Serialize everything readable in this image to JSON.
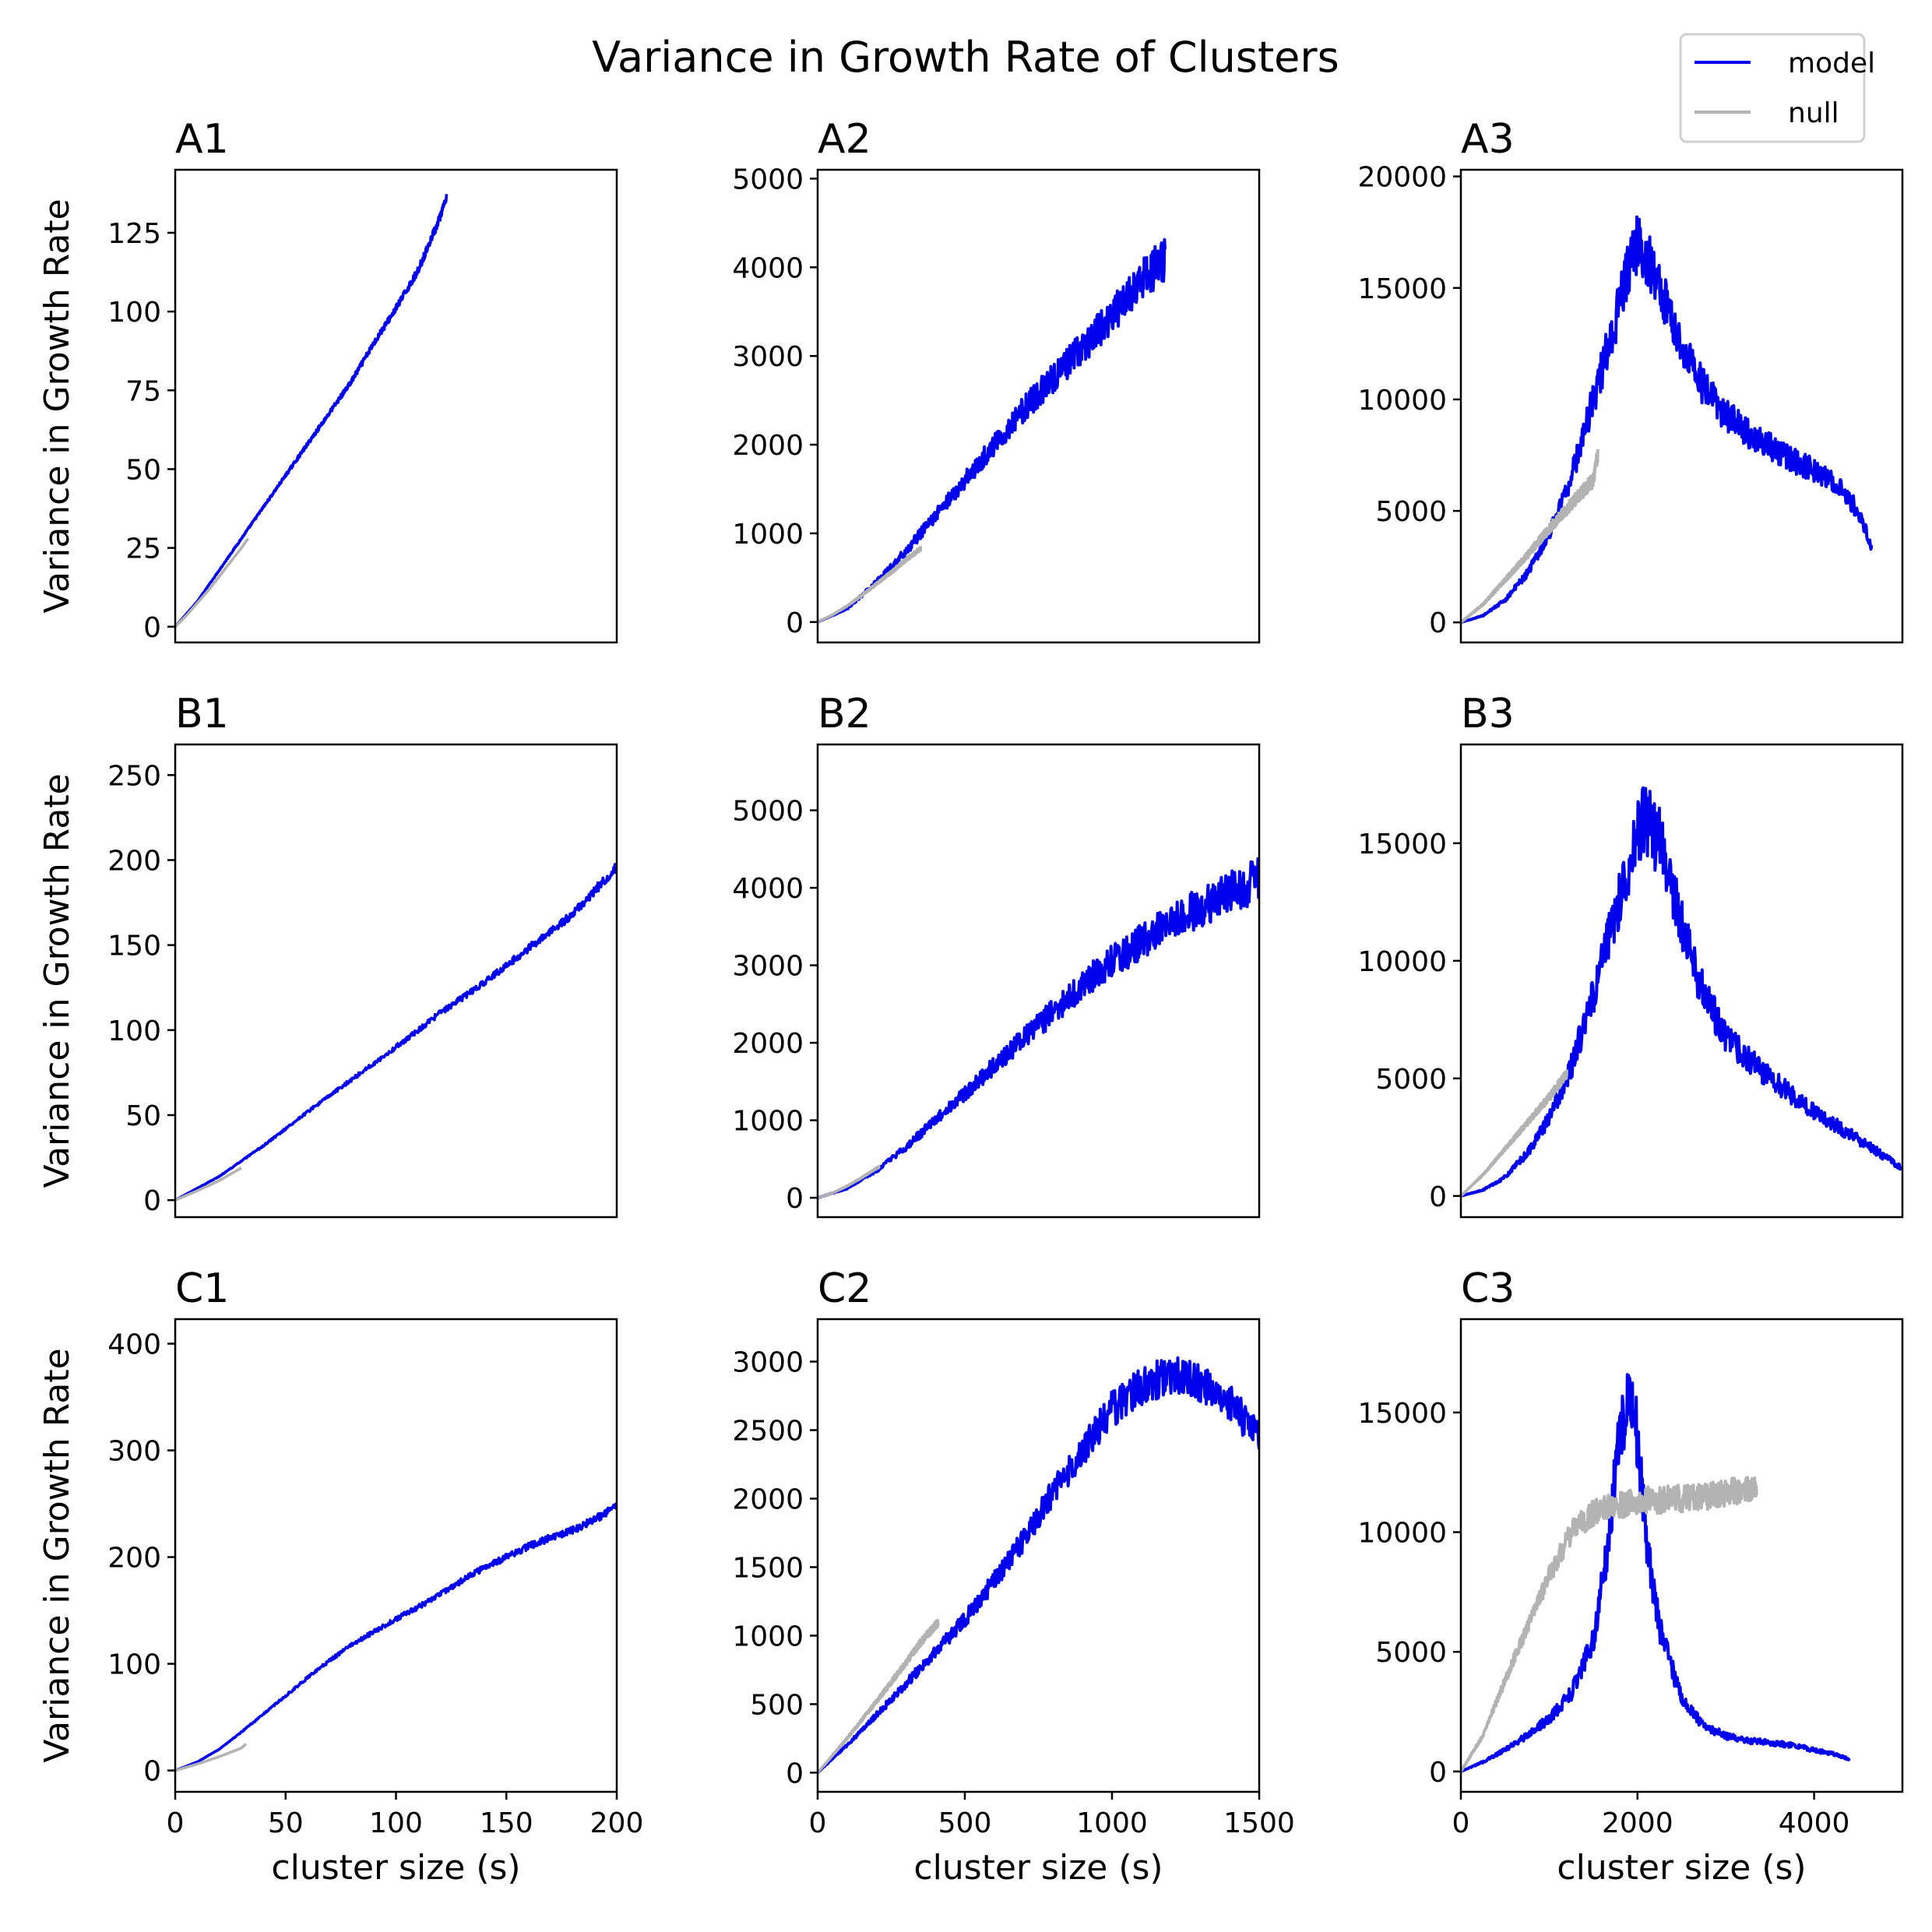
{
  "figure": {
    "title": "Variance in Growth Rate of Clusters",
    "legend": {
      "placement": "top-right",
      "entries": [
        {
          "label": "model",
          "color": "#0000ee"
        },
        {
          "label": "null",
          "color": "#b3b3b3"
        }
      ]
    }
  },
  "chart_data": [
    {
      "id": "A1",
      "type": "line",
      "title": "A1",
      "xlabel": "",
      "ylabel": "Variance in Growth Rate",
      "xlim": [
        0,
        200
      ],
      "ylim": [
        -5,
        145
      ],
      "xticks": [],
      "xticklabels": [],
      "yticks": [
        0,
        25,
        50,
        75,
        100,
        125
      ],
      "series": [
        {
          "name": "model",
          "color": "#0000ee",
          "noise": 0.01,
          "x": [
            0,
            10,
            20,
            30,
            40,
            50,
            60,
            70,
            80,
            90,
            100,
            110,
            120,
            123
          ],
          "y": [
            0,
            8,
            18,
            28,
            38,
            48,
            58,
            68,
            78,
            90,
            101,
            113,
            130,
            136
          ]
        },
        {
          "name": "null",
          "color": "#b3b3b3",
          "noise": 0.0,
          "x": [
            0,
            5,
            10,
            15,
            20,
            25,
            30,
            33
          ],
          "y": [
            0,
            3.5,
            7.5,
            11.5,
            16,
            20.5,
            25,
            28
          ]
        }
      ]
    },
    {
      "id": "A2",
      "type": "line",
      "title": "A2",
      "xlabel": "",
      "ylabel": "",
      "xlim": [
        0,
        1500
      ],
      "ylim": [
        -230,
        5100
      ],
      "xticks": [],
      "xticklabels": [],
      "yticks": [
        0,
        1000,
        2000,
        3000,
        4000,
        5000
      ],
      "series": [
        {
          "name": "model",
          "color": "#0000ee",
          "noise": 0.06,
          "x": [
            0,
            100,
            200,
            300,
            400,
            500,
            600,
            700,
            800,
            900,
            1000,
            1100,
            1180
          ],
          "y": [
            0,
            150,
            450,
            800,
            1200,
            1600,
            2000,
            2400,
            2750,
            3100,
            3450,
            3850,
            4100
          ]
        },
        {
          "name": "null",
          "color": "#b3b3b3",
          "noise": 0.03,
          "x": [
            0,
            50,
            100,
            150,
            200,
            250,
            300,
            350
          ],
          "y": [
            0,
            80,
            180,
            300,
            430,
            560,
            700,
            830
          ]
        }
      ]
    },
    {
      "id": "A3",
      "type": "line",
      "title": "A3",
      "xlabel": "",
      "ylabel": "",
      "xlim": [
        0,
        5000
      ],
      "ylim": [
        -900,
        20300
      ],
      "xticks": [],
      "xticklabels": [],
      "yticks": [
        0,
        5000,
        10000,
        15000,
        20000
      ],
      "series": [
        {
          "name": "model",
          "color": "#0000ee",
          "noise": 0.08,
          "x": [
            0,
            250,
            500,
            750,
            1000,
            1250,
            1500,
            1750,
            1900,
            2000,
            2100,
            2250,
            2500,
            2750,
            3000,
            3250,
            3500,
            3750,
            4000,
            4250,
            4500,
            4650
          ],
          "y": [
            0,
            300,
            1000,
            2200,
            4000,
            6500,
            10000,
            13500,
            16000,
            17000,
            16500,
            15000,
            12500,
            10500,
            9300,
            8500,
            7900,
            7300,
            6800,
            6200,
            5000,
            3500
          ]
        },
        {
          "name": "null",
          "color": "#b3b3b3",
          "noise": 0.05,
          "x": [
            0,
            250,
            500,
            750,
            1000,
            1250,
            1500,
            1550
          ],
          "y": [
            0,
            800,
            1900,
            3000,
            4200,
            5300,
            6400,
            7600
          ]
        }
      ]
    },
    {
      "id": "B1",
      "type": "line",
      "title": "B1",
      "xlabel": "",
      "ylabel": "Variance in Growth Rate",
      "xlim": [
        0,
        200
      ],
      "ylim": [
        -10,
        268
      ],
      "xticks": [],
      "xticklabels": [],
      "yticks": [
        0,
        50,
        100,
        150,
        200,
        250
      ],
      "series": [
        {
          "name": "model",
          "color": "#0000ee",
          "noise": 0.015,
          "x": [
            0,
            20,
            40,
            60,
            80,
            100,
            120,
            140,
            160,
            180,
            200
          ],
          "y": [
            0,
            14,
            32,
            52,
            71,
            90,
            110,
            128,
            148,
            168,
            196
          ]
        },
        {
          "name": "null",
          "color": "#b3b3b3",
          "noise": 0.0,
          "x": [
            0,
            10,
            20,
            30
          ],
          "y": [
            0,
            5.5,
            11.5,
            19
          ]
        }
      ]
    },
    {
      "id": "B2",
      "type": "line",
      "title": "B2",
      "xlabel": "",
      "ylabel": "",
      "xlim": [
        0,
        1500
      ],
      "ylim": [
        -250,
        5850
      ],
      "xticks": [],
      "xticklabels": [],
      "yticks": [
        0,
        1000,
        2000,
        3000,
        4000,
        5000
      ],
      "series": [
        {
          "name": "model",
          "color": "#0000ee",
          "noise": 0.07,
          "x": [
            0,
            100,
            200,
            300,
            400,
            500,
            600,
            700,
            800,
            900,
            1000,
            1100,
            1200,
            1300,
            1400,
            1500
          ],
          "y": [
            0,
            120,
            350,
            650,
            1000,
            1350,
            1700,
            2050,
            2400,
            2750,
            3050,
            3300,
            3550,
            3750,
            3950,
            4100
          ]
        },
        {
          "name": "null",
          "color": "#b3b3b3",
          "noise": 0.02,
          "x": [
            0,
            50,
            100,
            150,
            200,
            210
          ],
          "y": [
            0,
            60,
            150,
            260,
            380,
            400
          ]
        }
      ]
    },
    {
      "id": "B3",
      "type": "line",
      "title": "B3",
      "xlabel": "",
      "ylabel": "",
      "xlim": [
        0,
        5000
      ],
      "ylim": [
        -900,
        19200
      ],
      "xticks": [],
      "xticklabels": [],
      "yticks": [
        0,
        5000,
        10000,
        15000
      ],
      "series": [
        {
          "name": "model",
          "color": "#0000ee",
          "noise": 0.1,
          "x": [
            0,
            250,
            500,
            750,
            1000,
            1250,
            1500,
            1750,
            2000,
            2100,
            2250,
            2500,
            2750,
            3000,
            3250,
            3500,
            3750,
            4000,
            4250,
            4500,
            4750,
            4980
          ],
          "y": [
            0,
            250,
            800,
            1800,
            3300,
            5500,
            8500,
            12000,
            15500,
            16000,
            15000,
            11500,
            8600,
            6800,
            5800,
            5000,
            4300,
            3600,
            3000,
            2400,
            1800,
            1200
          ]
        },
        {
          "name": "null",
          "color": "#b3b3b3",
          "noise": 0.04,
          "x": [
            0,
            250,
            500,
            750,
            1000,
            1200
          ],
          "y": [
            0,
            900,
            2000,
            3100,
            4200,
            5200
          ]
        }
      ]
    },
    {
      "id": "C1",
      "type": "line",
      "title": "C1",
      "xlabel": "cluster size (s)",
      "ylabel": "Variance in Growth Rate",
      "xlim": [
        0,
        200
      ],
      "ylim": [
        -20,
        423
      ],
      "xticks": [
        0,
        50,
        100,
        150,
        200
      ],
      "xticklabels": [
        "0",
        "50",
        "100",
        "150",
        "200"
      ],
      "yticks": [
        0,
        100,
        200,
        300,
        400
      ],
      "series": [
        {
          "name": "model",
          "color": "#0000ee",
          "noise": 0.015,
          "x": [
            0,
            10,
            20,
            30,
            40,
            50,
            60,
            70,
            80,
            90,
            100,
            110,
            120,
            130,
            140,
            150,
            160,
            170,
            180,
            190,
            200
          ],
          "y": [
            0,
            8,
            20,
            36,
            53,
            70,
            87,
            103,
            118,
            130,
            142,
            153,
            165,
            178,
            190,
            200,
            210,
            218,
            225,
            235,
            248
          ]
        },
        {
          "name": "null",
          "color": "#b3b3b3",
          "noise": 0.0,
          "x": [
            0,
            10,
            20,
            30,
            32
          ],
          "y": [
            0,
            6,
            13,
            21,
            25
          ]
        }
      ]
    },
    {
      "id": "C2",
      "type": "line",
      "title": "C2",
      "xlabel": "cluster size (s)",
      "ylabel": "",
      "xlim": [
        0,
        1500
      ],
      "ylim": [
        -140,
        3310
      ],
      "xticks": [
        0,
        500,
        1000,
        1500
      ],
      "xticklabels": [
        "0",
        "500",
        "1000",
        "1500"
      ],
      "yticks": [
        0,
        500,
        1000,
        1500,
        2000,
        2500,
        3000
      ],
      "series": [
        {
          "name": "model",
          "color": "#0000ee",
          "noise": 0.05,
          "x": [
            0,
            100,
            200,
            300,
            400,
            500,
            600,
            700,
            800,
            900,
            1000,
            1100,
            1200,
            1300,
            1400,
            1500
          ],
          "y": [
            0,
            200,
            420,
            650,
            880,
            1120,
            1400,
            1700,
            2050,
            2350,
            2650,
            2820,
            2900,
            2850,
            2700,
            2450
          ]
        },
        {
          "name": "null",
          "color": "#b3b3b3",
          "noise": 0.03,
          "x": [
            0,
            100,
            200,
            300,
            350,
            410
          ],
          "y": [
            0,
            250,
            520,
            800,
            950,
            1100
          ]
        }
      ]
    },
    {
      "id": "C3",
      "type": "line",
      "title": "C3",
      "xlabel": "cluster size (s)",
      "ylabel": "",
      "xlim": [
        0,
        5000
      ],
      "ylim": [
        -850,
        18900
      ],
      "xticks": [
        0,
        2000,
        4000
      ],
      "xticklabels": [
        "0",
        "2000",
        "4000"
      ],
      "yticks": [
        0,
        5000,
        10000,
        15000
      ],
      "series": [
        {
          "name": "model",
          "color": "#0000ee",
          "noise": 0.1,
          "x": [
            0,
            250,
            500,
            750,
            1000,
            1250,
            1500,
            1650,
            1800,
            1900,
            2000,
            2100,
            2250,
            2500,
            2750,
            3000,
            3250,
            3500,
            3750,
            4000,
            4250,
            4400
          ],
          "y": [
            0,
            400,
            900,
            1500,
            2200,
            3300,
            5500,
            9000,
            14000,
            16000,
            14000,
            9500,
            6000,
            3000,
            1900,
            1500,
            1300,
            1200,
            1100,
            900,
            700,
            500
          ]
        },
        {
          "name": "null",
          "color": "#b3b3b3",
          "noise": 0.05,
          "x": [
            0,
            250,
            500,
            750,
            1000,
            1250,
            1500,
            1750,
            2000,
            2500,
            3000,
            3350
          ],
          "y": [
            0,
            1500,
            3800,
            6000,
            8200,
            10000,
            10800,
            11100,
            11300,
            11400,
            11600,
            12000
          ]
        }
      ]
    }
  ]
}
